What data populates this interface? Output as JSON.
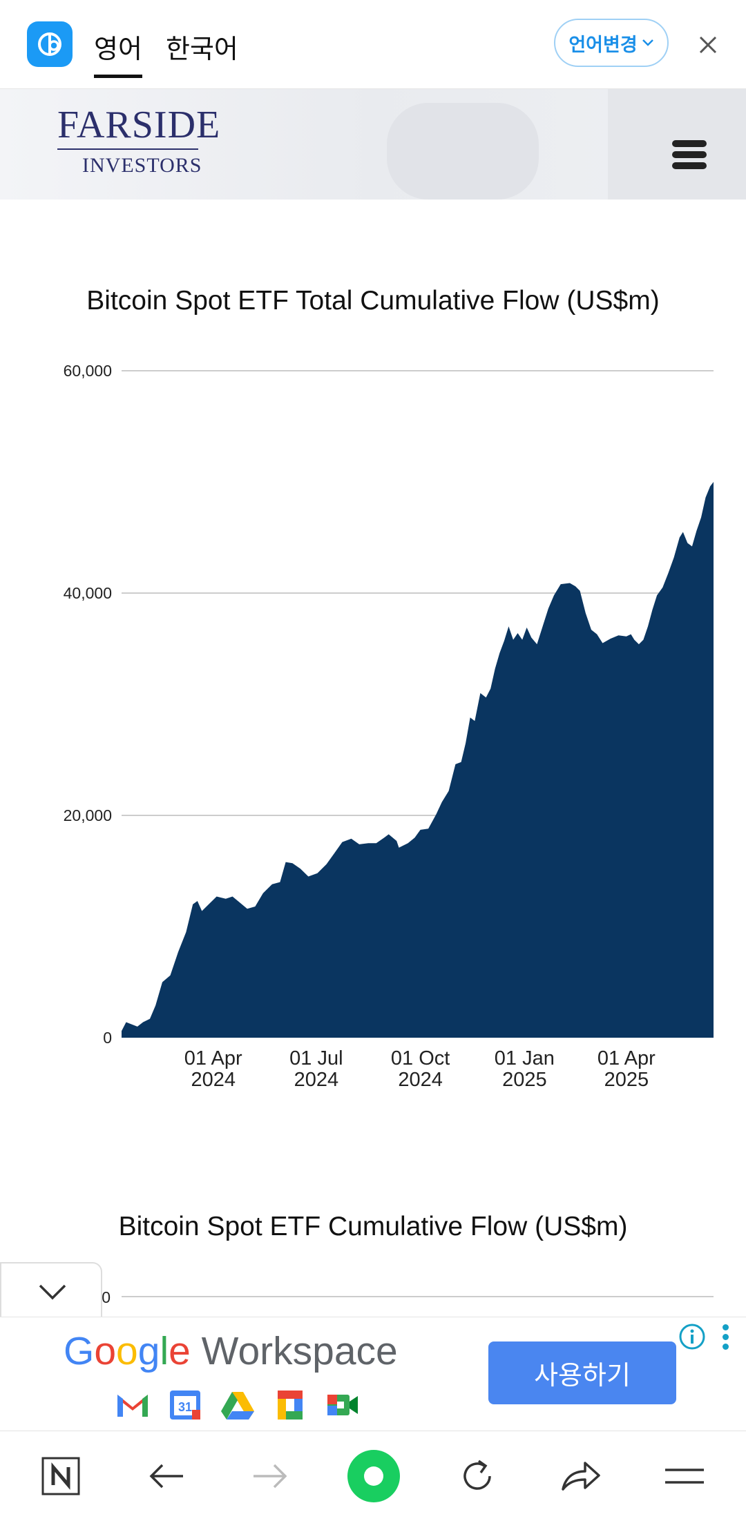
{
  "translate_bar": {
    "tab_source": "영어",
    "tab_target": "한국어",
    "change_language_label": "언어변경"
  },
  "site": {
    "logo_line1": "FARSIDE",
    "logo_line2": "INVESTORS"
  },
  "chart_data": [
    {
      "type": "area",
      "title": "Bitcoin Spot ETF Total Cumulative Flow (US$m)",
      "xlabel": "",
      "ylabel": "",
      "ylim": [
        0,
        60000
      ],
      "y_ticks": [
        "60,000",
        "40,000",
        "20,000",
        "0"
      ],
      "y_tick_values": [
        60000,
        40000,
        20000,
        0
      ],
      "x_ticks": [
        {
          "line1": "01 Apr",
          "line2": "2024",
          "date": "2024-04-01"
        },
        {
          "line1": "01 Jul",
          "line2": "2024",
          "date": "2024-07-01"
        },
        {
          "line1": "01 Oct",
          "line2": "2024",
          "date": "2024-10-01"
        },
        {
          "line1": "01 Jan",
          "line2": "2025",
          "date": "2025-01-01"
        },
        {
          "line1": "01 Apr",
          "line2": "2025",
          "date": "2025-04-01"
        }
      ],
      "xlim": [
        "2024-01-11",
        "2025-06-17"
      ],
      "grid": true,
      "color": "#0a3560",
      "series": [
        {
          "points": [
            [
              "2024-01-11",
              600
            ],
            [
              "2024-01-15",
              1400
            ],
            [
              "2024-01-25",
              1000
            ],
            [
              "2024-01-30",
              1400
            ],
            [
              "2024-02-05",
              1700
            ],
            [
              "2024-02-10",
              2900
            ],
            [
              "2024-02-16",
              5000
            ],
            [
              "2024-02-23",
              5600
            ],
            [
              "2024-03-01",
              7700
            ],
            [
              "2024-03-08",
              9500
            ],
            [
              "2024-03-14",
              12000
            ],
            [
              "2024-03-18",
              12300
            ],
            [
              "2024-03-22",
              11400
            ],
            [
              "2024-03-28",
              12000
            ],
            [
              "2024-04-04",
              12700
            ],
            [
              "2024-04-12",
              12500
            ],
            [
              "2024-04-18",
              12700
            ],
            [
              "2024-04-24",
              12200
            ],
            [
              "2024-05-01",
              11600
            ],
            [
              "2024-05-08",
              11800
            ],
            [
              "2024-05-15",
              13000
            ],
            [
              "2024-05-23",
              13800
            ],
            [
              "2024-05-30",
              14000
            ],
            [
              "2024-06-04",
              15800
            ],
            [
              "2024-06-10",
              15700
            ],
            [
              "2024-06-17",
              15200
            ],
            [
              "2024-06-24",
              14500
            ],
            [
              "2024-07-02",
              14800
            ],
            [
              "2024-07-10",
              15600
            ],
            [
              "2024-07-17",
              16600
            ],
            [
              "2024-07-24",
              17600
            ],
            [
              "2024-08-01",
              17900
            ],
            [
              "2024-08-08",
              17400
            ],
            [
              "2024-08-16",
              17500
            ],
            [
              "2024-08-23",
              17500
            ],
            [
              "2024-08-30",
              18000
            ],
            [
              "2024-09-03",
              18300
            ],
            [
              "2024-09-10",
              17700
            ],
            [
              "2024-09-12",
              17100
            ],
            [
              "2024-09-20",
              17500
            ],
            [
              "2024-09-26",
              18000
            ],
            [
              "2024-10-01",
              18700
            ],
            [
              "2024-10-08",
              18800
            ],
            [
              "2024-10-15",
              20100
            ],
            [
              "2024-10-20",
              21200
            ],
            [
              "2024-10-26",
              22200
            ],
            [
              "2024-11-01",
              24600
            ],
            [
              "2024-11-06",
              24800
            ],
            [
              "2024-11-10",
              26500
            ],
            [
              "2024-11-14",
              28800
            ],
            [
              "2024-11-18",
              28500
            ],
            [
              "2024-11-23",
              31000
            ],
            [
              "2024-11-28",
              30600
            ],
            [
              "2024-12-02",
              31400
            ],
            [
              "2024-12-06",
              33200
            ],
            [
              "2024-12-10",
              34600
            ],
            [
              "2024-12-14",
              35700
            ],
            [
              "2024-12-18",
              37000
            ],
            [
              "2024-12-22",
              35800
            ],
            [
              "2024-12-26",
              36400
            ],
            [
              "2024-12-30",
              35800
            ],
            [
              "2025-01-03",
              36900
            ],
            [
              "2025-01-07",
              36000
            ],
            [
              "2025-01-12",
              35400
            ],
            [
              "2025-01-17",
              37000
            ],
            [
              "2025-01-22",
              38600
            ],
            [
              "2025-01-27",
              39800
            ],
            [
              "2025-02-02",
              40800
            ],
            [
              "2025-02-10",
              40900
            ],
            [
              "2025-02-15",
              40600
            ],
            [
              "2025-02-19",
              40200
            ],
            [
              "2025-02-24",
              38200
            ],
            [
              "2025-03-01",
              36700
            ],
            [
              "2025-03-06",
              36300
            ],
            [
              "2025-03-11",
              35500
            ],
            [
              "2025-03-18",
              35900
            ],
            [
              "2025-03-25",
              36200
            ],
            [
              "2025-04-01",
              36100
            ],
            [
              "2025-04-05",
              36300
            ],
            [
              "2025-04-08",
              35800
            ],
            [
              "2025-04-12",
              35400
            ],
            [
              "2025-04-16",
              35800
            ],
            [
              "2025-04-20",
              37000
            ],
            [
              "2025-04-24",
              38500
            ],
            [
              "2025-04-28",
              39800
            ],
            [
              "2025-05-03",
              40500
            ],
            [
              "2025-05-08",
              41800
            ],
            [
              "2025-05-13",
              43200
            ],
            [
              "2025-05-18",
              45000
            ],
            [
              "2025-05-21",
              45500
            ],
            [
              "2025-05-25",
              44500
            ],
            [
              "2025-05-29",
              44200
            ],
            [
              "2025-06-02",
              45600
            ],
            [
              "2025-06-06",
              46800
            ],
            [
              "2025-06-10",
              48600
            ],
            [
              "2025-06-14",
              49600
            ],
            [
              "2025-06-17",
              50000
            ]
          ]
        }
      ]
    },
    {
      "type": "area",
      "title": "Bitcoin Spot ETF Cumulative Flow (US$m)",
      "y_ticks_visible": [
        "0"
      ]
    }
  ],
  "ad": {
    "brand_word1": "Google",
    "brand_word2": "Workspace",
    "cta_label": "사용하기",
    "apps": [
      "gmail-icon",
      "calendar-icon",
      "drive-icon",
      "docs-icon",
      "meet-icon"
    ],
    "calendar_day": "31"
  },
  "nav": {
    "icons": [
      "naver-n-icon",
      "back-arrow-icon",
      "forward-arrow-icon",
      "green-circle-icon",
      "refresh-icon",
      "share-icon",
      "menu-icon"
    ]
  }
}
